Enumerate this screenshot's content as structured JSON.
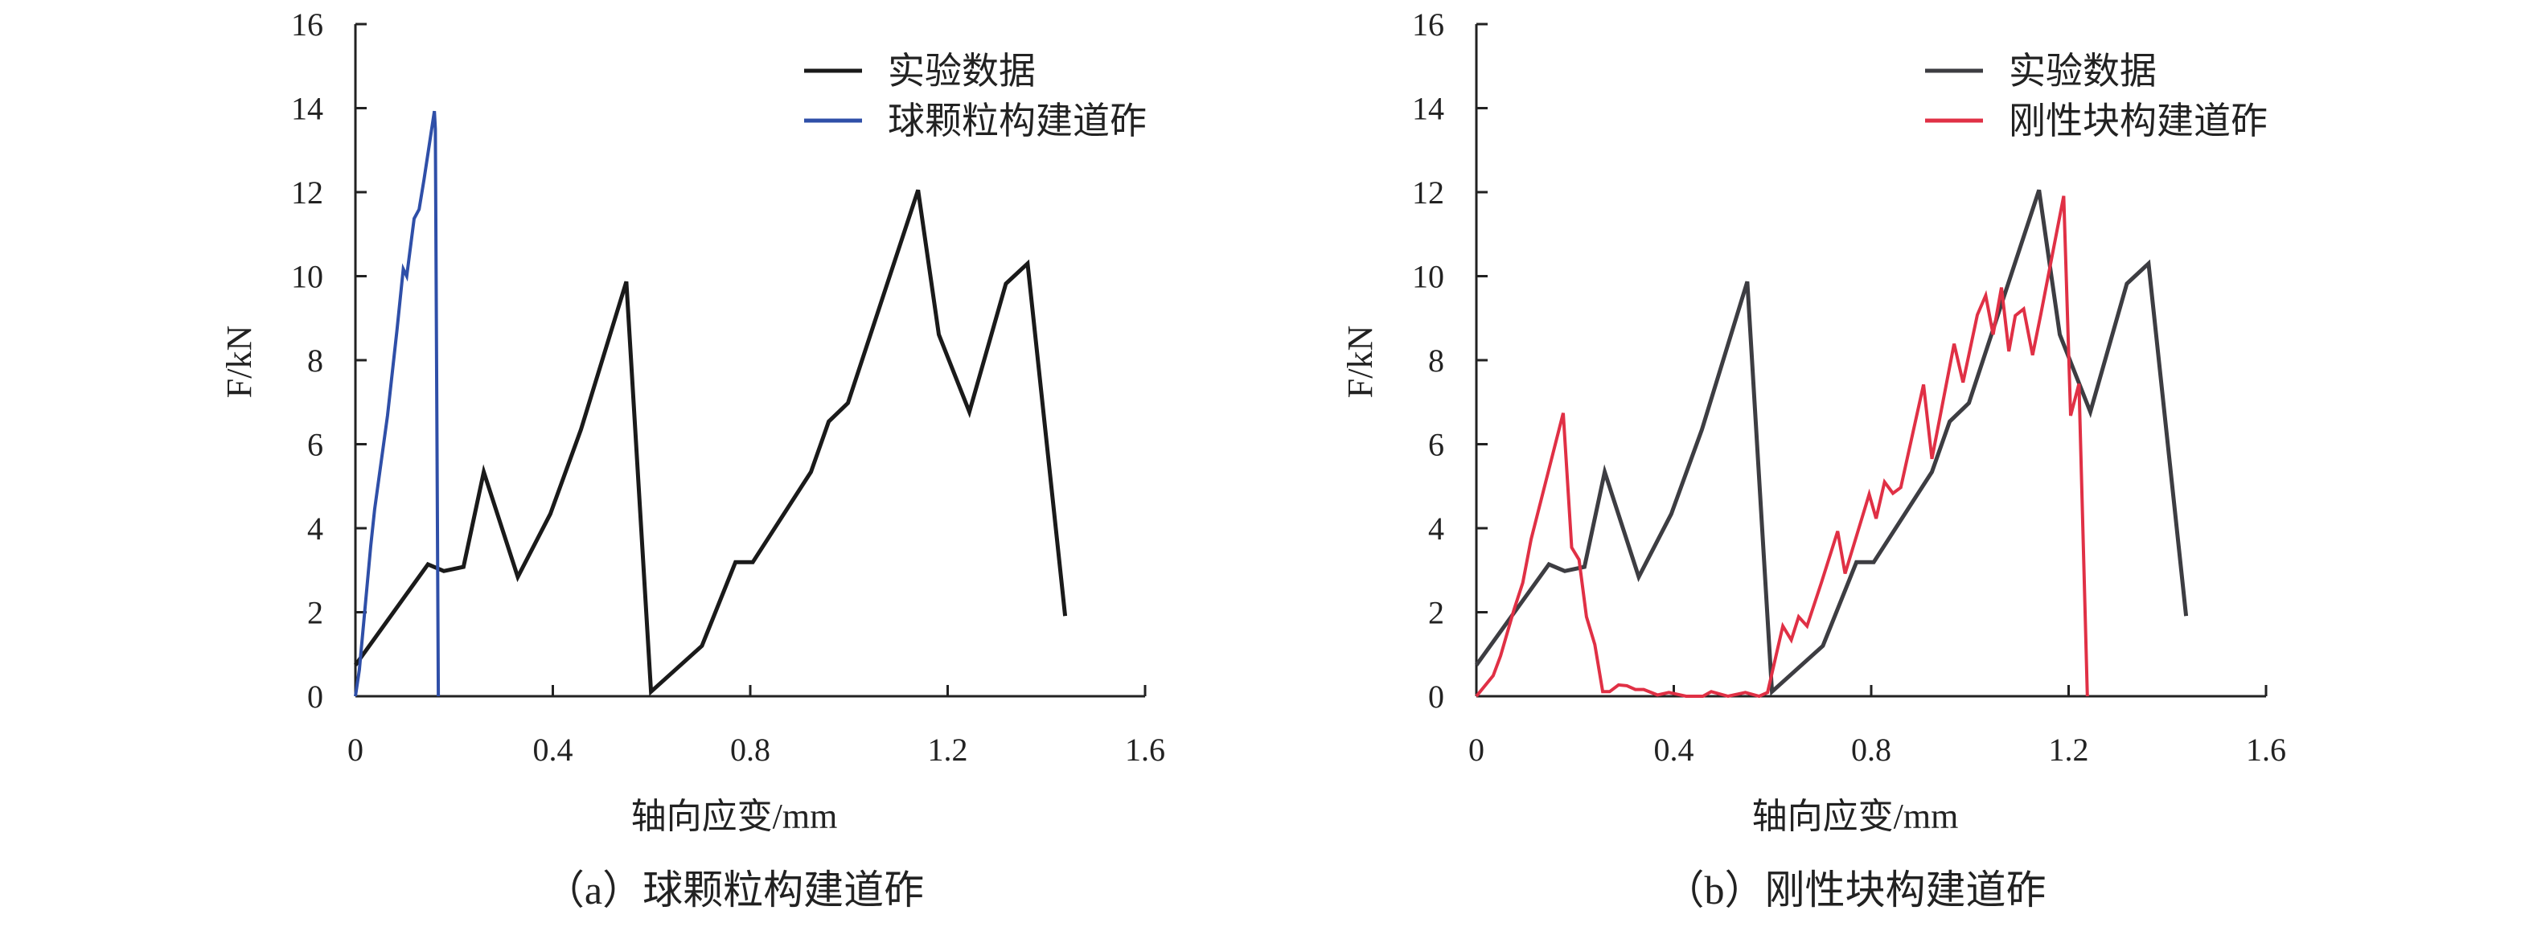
{
  "chart_data": [
    {
      "type": "line",
      "caption": "（a）球颗粒构建道砟",
      "xlabel": "轴向应变/mm",
      "ylabel": "F/kN",
      "xlim": [
        0,
        1.6
      ],
      "ylim": [
        0,
        16
      ],
      "xticks": [
        "0",
        "0.4",
        "0.8",
        "1.2",
        "1.6"
      ],
      "yticks": [
        "0",
        "2",
        "4",
        "6",
        "8",
        "10",
        "12",
        "14",
        "16"
      ],
      "grid": false,
      "legend_position": "top-right",
      "series": [
        {
          "name": "实验数据",
          "color": "#1a1a1a",
          "x": [
            0,
            0.147,
            0.179,
            0.219,
            0.26,
            0.329,
            0.395,
            0.457,
            0.549,
            0.599,
            0.702,
            0.77,
            0.805,
            0.923,
            0.959,
            0.998,
            1.14,
            1.182,
            1.244,
            1.318,
            1.362,
            1.438
          ],
          "y": [
            0.74,
            3.14,
            2.98,
            3.08,
            5.34,
            2.84,
            4.34,
            6.35,
            9.87,
            0.11,
            1.2,
            3.19,
            3.19,
            5.34,
            6.54,
            6.98,
            12.05,
            8.61,
            6.77,
            9.82,
            10.3,
            1.91
          ]
        },
        {
          "name": "球颗粒构建道砟",
          "color": "#2f4fa8",
          "x": [
            0,
            0.008,
            0.031,
            0.039,
            0.065,
            0.084,
            0.097,
            0.104,
            0.119,
            0.129,
            0.139,
            0.16,
            0.162,
            0.168
          ],
          "y": [
            0,
            0.63,
            3.57,
            4.45,
            6.68,
            8.7,
            10.17,
            10.0,
            11.37,
            11.59,
            12.3,
            13.93,
            13.5,
            0
          ]
        }
      ]
    },
    {
      "type": "line",
      "caption": "（b）刚性块构建道砟",
      "xlabel": "轴向应变/mm",
      "ylabel": "F/kN",
      "xlim": [
        0,
        1.6
      ],
      "ylim": [
        0,
        16
      ],
      "xticks": [
        "0",
        "0.4",
        "0.8",
        "1.2",
        "1.6"
      ],
      "yticks": [
        "0",
        "2",
        "4",
        "6",
        "8",
        "10",
        "12",
        "14",
        "16"
      ],
      "grid": false,
      "legend_position": "top-right",
      "series": [
        {
          "name": "实验数据",
          "color": "#3d3d42",
          "x": [
            0,
            0.147,
            0.179,
            0.219,
            0.26,
            0.329,
            0.395,
            0.457,
            0.549,
            0.599,
            0.702,
            0.77,
            0.805,
            0.923,
            0.959,
            0.998,
            1.14,
            1.182,
            1.244,
            1.318,
            1.362,
            1.438
          ],
          "y": [
            0.74,
            3.14,
            2.98,
            3.08,
            5.34,
            2.84,
            4.34,
            6.35,
            9.87,
            0.11,
            1.2,
            3.19,
            3.19,
            5.34,
            6.54,
            6.98,
            12.05,
            8.61,
            6.77,
            9.82,
            10.3,
            1.91
          ]
        },
        {
          "name": "刚性块构建道砟",
          "color": "#e03045",
          "x": [
            0,
            0.034,
            0.049,
            0.076,
            0.094,
            0.111,
            0.176,
            0.193,
            0.208,
            0.223,
            0.24,
            0.256,
            0.27,
            0.288,
            0.305,
            0.322,
            0.339,
            0.367,
            0.39,
            0.425,
            0.459,
            0.476,
            0.51,
            0.545,
            0.573,
            0.59,
            0.621,
            0.638,
            0.653,
            0.67,
            0.699,
            0.732,
            0.747,
            0.796,
            0.81,
            0.827,
            0.844,
            0.86,
            0.906,
            0.923,
            0.968,
            0.986,
            1.015,
            1.032,
            1.047,
            1.064,
            1.079,
            1.092,
            1.109,
            1.127,
            1.144,
            1.19,
            1.204,
            1.221,
            1.238
          ],
          "y": [
            0,
            0.49,
            0.96,
            2.05,
            2.7,
            3.74,
            6.74,
            3.54,
            3.25,
            1.89,
            1.23,
            0.11,
            0.11,
            0.27,
            0.25,
            0.16,
            0.16,
            0.03,
            0.09,
            0,
            0,
            0.11,
            0,
            0.09,
            0,
            0.09,
            1.67,
            1.34,
            1.89,
            1.67,
            2.7,
            3.93,
            2.92,
            4.81,
            4.23,
            5.1,
            4.83,
            4.97,
            7.42,
            5.65,
            8.39,
            7.47,
            9.08,
            9.54,
            8.61,
            9.73,
            8.21,
            9.06,
            9.22,
            8.12,
            9.11,
            11.91,
            6.68,
            7.44,
            0
          ]
        }
      ]
    }
  ]
}
